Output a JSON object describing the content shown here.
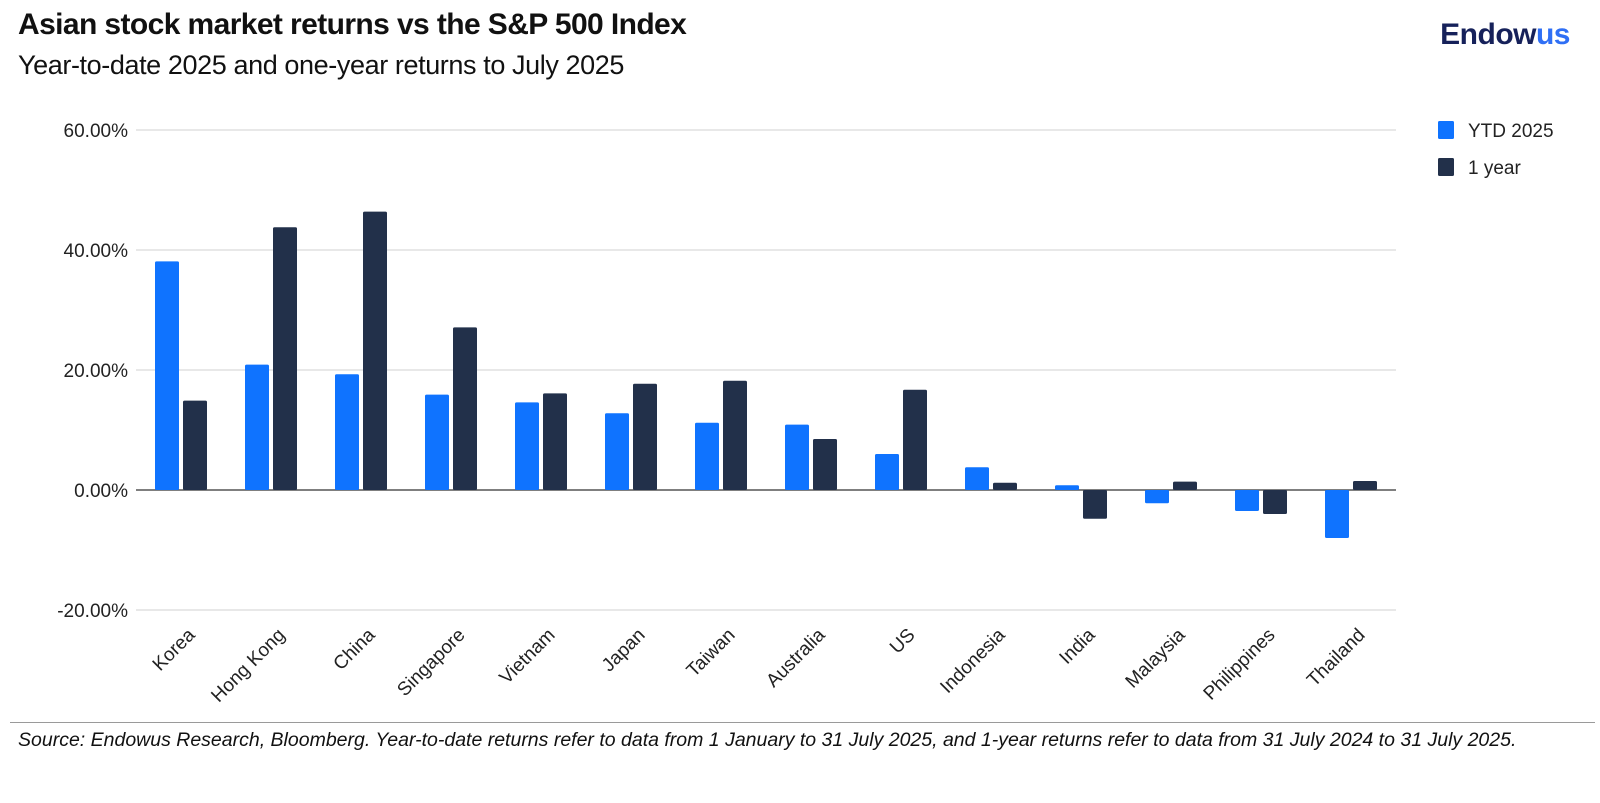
{
  "brand": {
    "part1": "Endow",
    "part2": "us"
  },
  "source": "Source: Endowus Research, Bloomberg. Year-to-date returns refer to data from 1 January to 31 July 2025, and 1-year returns refer to data from 31 July 2024 to 31 July 2025.",
  "colors": {
    "ytd": "#0f73ff",
    "one_year": "#22304a",
    "grid": "#d0d0d0",
    "axis": "#555555"
  },
  "chart_data": {
    "type": "bar",
    "title": "Asian stock market returns vs the S&P 500 Index",
    "subtitle": "Year-to-date  2025 and one-year returns to July 2025",
    "xlabel": "",
    "ylabel": "",
    "ylim": [
      -20,
      60
    ],
    "yticks": [
      60,
      40,
      20,
      0,
      -20
    ],
    "ytick_labels": [
      "60.00%",
      "40.00%",
      "20.00%",
      "0.00%",
      "-20.00%"
    ],
    "grid": true,
    "legend_position": "top-right",
    "categories": [
      "Korea",
      "Hong Kong",
      "China",
      "Singapore",
      "Vietnam",
      "Japan",
      "Taiwan",
      "Australia",
      "US",
      "Indonesia",
      "India",
      "Malaysia",
      "Philippines",
      "Thailand"
    ],
    "series": [
      {
        "name": "YTD 2025",
        "color": "#0f73ff",
        "values": [
          38.1,
          20.9,
          19.3,
          15.9,
          14.6,
          12.8,
          11.2,
          10.9,
          6.0,
          3.8,
          0.8,
          -2.2,
          -3.5,
          -8.0
        ]
      },
      {
        "name": "1 year",
        "color": "#22304a",
        "values": [
          14.9,
          43.8,
          46.4,
          27.1,
          16.1,
          17.7,
          18.2,
          8.5,
          16.7,
          1.2,
          -4.8,
          1.4,
          -4.0,
          1.5
        ]
      }
    ]
  }
}
